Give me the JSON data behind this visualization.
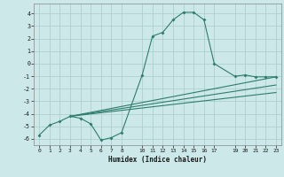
{
  "xlabel": "Humidex (Indice chaleur)",
  "xlim": [
    -0.5,
    23.5
  ],
  "ylim": [
    -6.5,
    4.8
  ],
  "xticks": [
    0,
    1,
    2,
    3,
    4,
    5,
    6,
    7,
    8,
    10,
    11,
    12,
    13,
    14,
    15,
    16,
    17,
    19,
    20,
    21,
    22,
    23
  ],
  "yticks": [
    -6,
    -5,
    -4,
    -3,
    -2,
    -1,
    0,
    1,
    2,
    3,
    4
  ],
  "bg_color": "#cce8e8",
  "grid_color": "#aacccc",
  "line_color": "#2e7d6e",
  "line1_x": [
    0,
    1,
    2,
    3,
    4,
    5,
    6,
    7,
    8,
    10,
    11,
    12,
    13,
    14,
    15,
    16,
    17,
    19,
    20,
    21,
    22,
    23
  ],
  "line1_y": [
    -5.7,
    -4.9,
    -4.6,
    -4.2,
    -4.35,
    -4.8,
    -6.1,
    -5.9,
    -5.5,
    -0.9,
    2.2,
    2.5,
    3.5,
    4.1,
    4.1,
    3.5,
    0.0,
    -1.0,
    -0.9,
    -1.05,
    -1.05,
    -1.05
  ],
  "line2_x": [
    3,
    23
  ],
  "line2_y": [
    -4.2,
    -1.05
  ],
  "line3_x": [
    3,
    23
  ],
  "line3_y": [
    -4.2,
    -1.7
  ],
  "line4_x": [
    3,
    23
  ],
  "line4_y": [
    -4.2,
    -2.3
  ],
  "figsize": [
    3.2,
    2.0
  ],
  "dpi": 100
}
